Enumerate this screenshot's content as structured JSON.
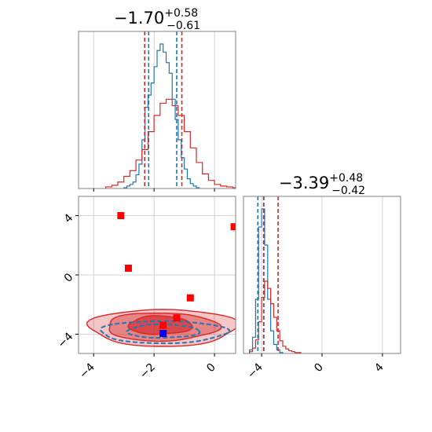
{
  "chart_data": {
    "type": "corner",
    "colors": {
      "blue": "#1f77b4",
      "red": "#d62728",
      "square_red": "#ff0000",
      "square_blue": "#0000ff",
      "grid": "#c8c8c8",
      "frame": "#808080"
    },
    "panels": [
      {
        "id": "hist-x",
        "type": "histogram",
        "title": {
          "main": "−1.70",
          "sup": "+0.58",
          "sub": "−0.61"
        },
        "xlim": [
          -4.5,
          0.7
        ],
        "grid_x": [
          -4,
          -2,
          0
        ],
        "series": [
          {
            "name": "",
            "color": "blue",
            "bins": [
              -3.0,
              -2.9,
              -2.8,
              -2.7,
              -2.6,
              -2.5,
              -2.4,
              -2.3,
              -2.2,
              -2.1,
              -2.0,
              -1.9,
              -1.8,
              -1.7,
              -1.6,
              -1.5,
              -1.4,
              -1.3,
              -1.2,
              -1.1,
              -1.0,
              -0.9,
              -0.8,
              -0.7,
              -0.6
            ],
            "counts": [
              1,
              3,
              5,
              8,
              17,
              30,
              60,
              100,
              115,
              130,
              150,
              170,
              178,
              168,
              155,
              142,
              110,
              85,
              60,
              38,
              24,
              12,
              6,
              3,
              1
            ]
          },
          {
            "name": "",
            "color": "red",
            "bins": [
              -3.6,
              -3.4,
              -3.2,
              -3.0,
              -2.8,
              -2.6,
              -2.4,
              -2.2,
              -2.0,
              -1.8,
              -1.6,
              -1.4,
              -1.2,
              -1.0,
              -0.8,
              -0.6,
              -0.4,
              -0.2,
              0.0,
              0.2,
              0.4,
              0.6
            ],
            "counts": [
              2,
              4,
              8,
              15,
              22,
              35,
              48,
              70,
              90,
              105,
              110,
              102,
              90,
              70,
              50,
              32,
              18,
              10,
              5,
              3,
              2,
              1
            ]
          }
        ],
        "vlines": [
          {
            "x": -2.31,
            "color": "red"
          },
          {
            "x": -2.18,
            "color": "blue"
          },
          {
            "x": -1.25,
            "color": "blue"
          },
          {
            "x": -1.08,
            "color": "red"
          }
        ]
      },
      {
        "id": "hist-y",
        "type": "histogram",
        "title": {
          "main": "−3.39",
          "sup": "+0.48",
          "sub": "−0.42"
        },
        "xlim": [
          -5.2,
          5.2
        ],
        "xticks": [
          "−4",
          "0",
          "4"
        ],
        "xtick_values": [
          -4,
          0,
          4
        ],
        "grid_x": [
          -4,
          0,
          4
        ],
        "series": [
          {
            "name": "",
            "color": "blue",
            "bins": [
              -4.8,
              -4.6,
              -4.4,
              -4.2,
              -4.0,
              -3.8,
              -3.6,
              -3.4,
              -3.2,
              -3.0,
              -2.8
            ],
            "counts": [
              4,
              18,
              60,
              140,
              160,
              120,
              60,
              25,
              10,
              4,
              1
            ]
          },
          {
            "name": "",
            "color": "red",
            "bins": [
              -4.8,
              -4.6,
              -4.4,
              -4.2,
              -4.0,
              -3.8,
              -3.6,
              -3.4,
              -3.2,
              -3.0,
              -2.8,
              -2.6,
              -2.4,
              -2.2,
              -2.0,
              -1.8,
              -1.6
            ],
            "counts": [
              2,
              6,
              15,
              35,
              62,
              80,
              72,
              55,
              40,
              25,
              14,
              8,
              5,
              3,
              2,
              1,
              1
            ]
          }
        ],
        "vlines": [
          {
            "x": -4.25,
            "color": "blue"
          },
          {
            "x": -3.85,
            "color": "blue"
          },
          {
            "x": -3.87,
            "color": "red"
          },
          {
            "x": -2.91,
            "color": "red"
          }
        ]
      },
      {
        "id": "scatter-xy",
        "type": "scatter-contour",
        "xlim": [
          -4.5,
          0.7
        ],
        "ylim": [
          -5.3,
          5.3
        ],
        "xticks": [
          "−4",
          "−2",
          "0"
        ],
        "xtick_values": [
          -4,
          -2,
          0
        ],
        "yticks": [
          "4",
          "0",
          "−4"
        ],
        "ytick_values": [
          4,
          0,
          -4
        ],
        "grid_x": [
          -4,
          -2,
          0
        ],
        "grid_y": [
          -4,
          0,
          4
        ],
        "red_contours": [
          {
            "cx": -1.7,
            "cy": -3.55,
            "rx": 2.45,
            "ry": 1.25,
            "alpha": 0.35
          },
          {
            "cx": -1.75,
            "cy": -3.5,
            "rx": 1.85,
            "ry": 0.95,
            "alpha": 0.55
          },
          {
            "cx": -1.8,
            "cy": -3.4,
            "rx": 1.05,
            "ry": 0.62,
            "alpha": 0.85
          }
        ],
        "blue_contours": [
          {
            "cx": -1.7,
            "cy": -3.85,
            "rx": 2.1,
            "ry": 0.75
          },
          {
            "cx": -1.7,
            "cy": -3.8,
            "rx": 1.2,
            "ry": 0.45
          }
        ],
        "red_points": [
          {
            "x": -3.1,
            "y": 4.0
          },
          {
            "x": -2.85,
            "y": 0.45
          },
          {
            "x": 0.65,
            "y": 3.25
          },
          {
            "x": -0.8,
            "y": -1.55
          },
          {
            "x": -1.25,
            "y": -2.9
          },
          {
            "x": -1.7,
            "y": -3.4
          }
        ],
        "blue_points": [
          {
            "x": -1.7,
            "y": -3.95
          }
        ]
      }
    ]
  }
}
